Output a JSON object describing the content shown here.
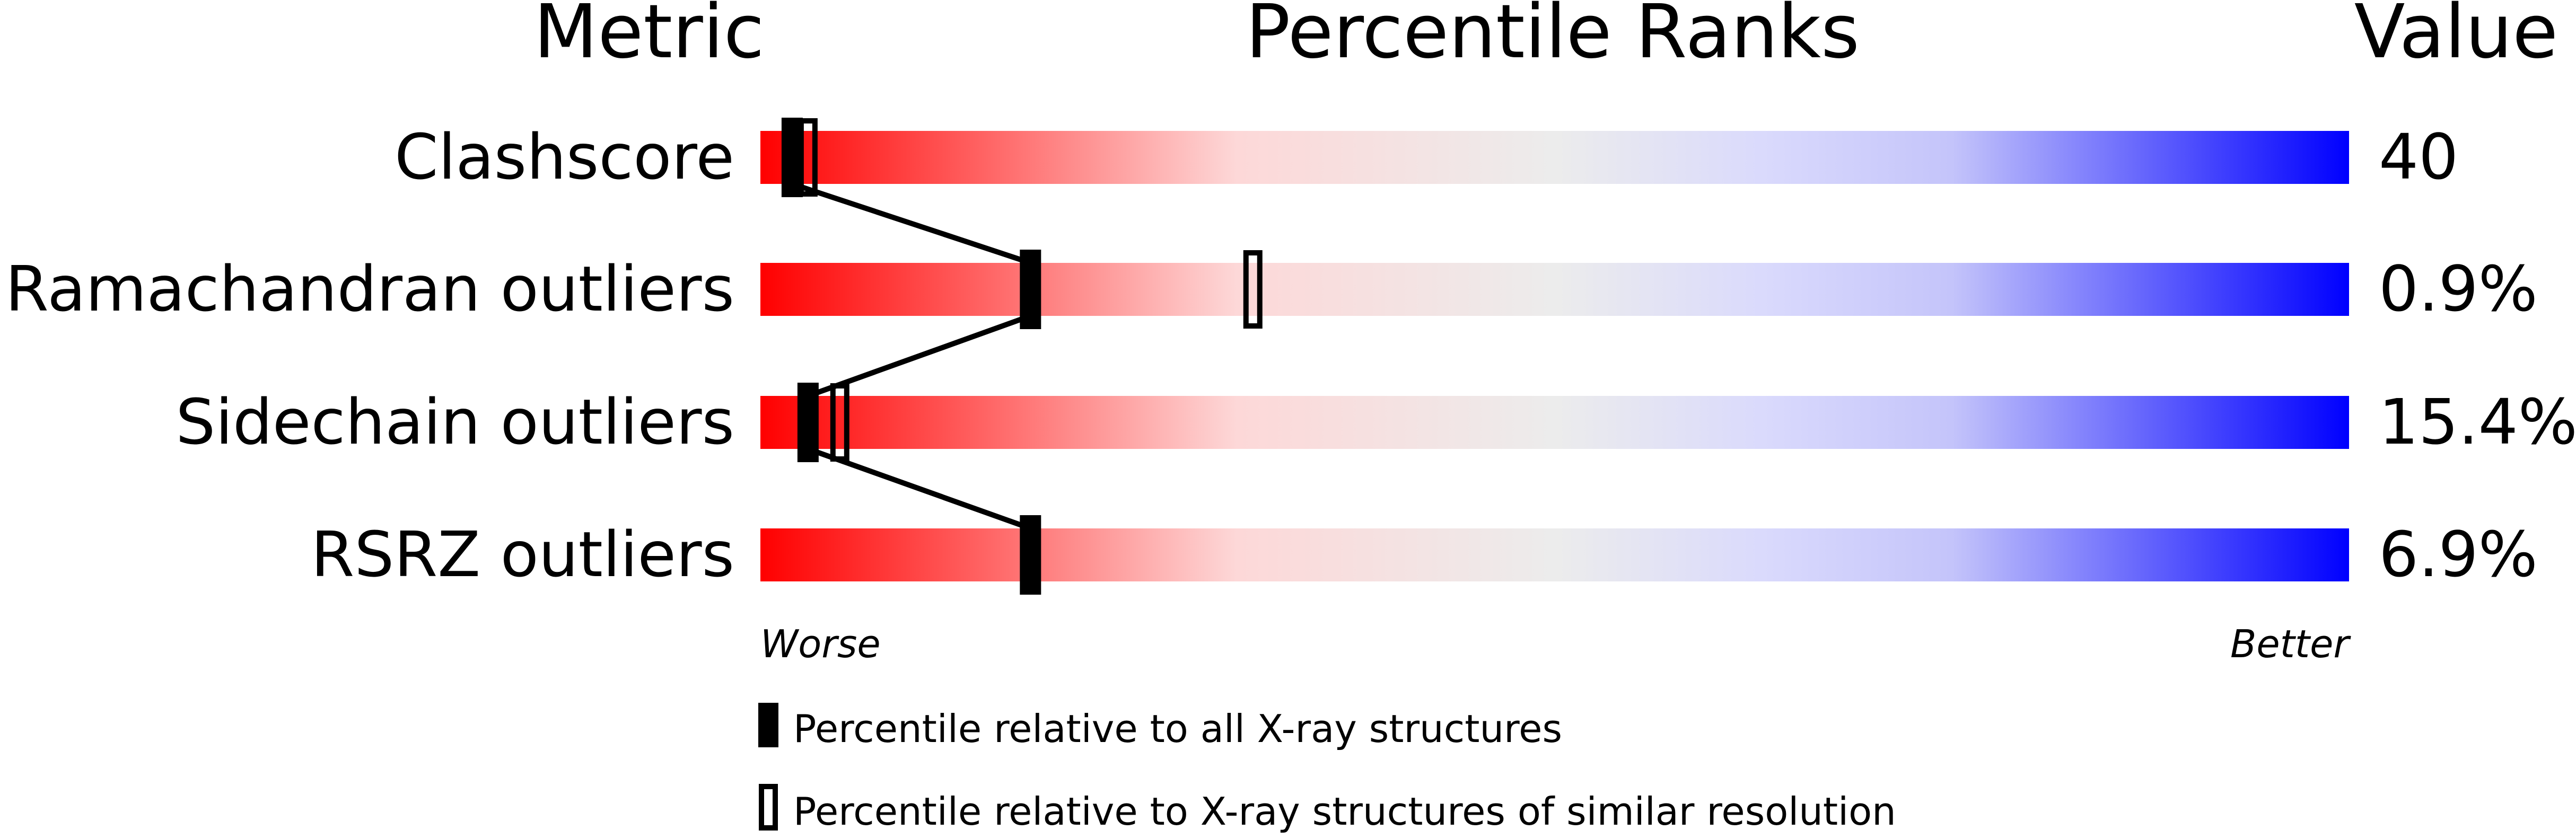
{
  "chart_data": {
    "type": "percentile-slider",
    "headers": {
      "metric": "Metric",
      "ranks": "Percentile Ranks",
      "value": "Value"
    },
    "xlim": [
      0,
      100
    ],
    "metrics": [
      {
        "name": "Clashscore",
        "value": "40",
        "percentile_all": 2,
        "percentile_similar": 3
      },
      {
        "name": "Ramachandran outliers",
        "value": "0.9%",
        "percentile_all": 17,
        "percentile_similar": 31
      },
      {
        "name": "Sidechain outliers",
        "value": "15.4%",
        "percentile_all": 3,
        "percentile_similar": 5
      },
      {
        "name": "RSRZ outliers",
        "value": "6.9%",
        "percentile_all": 17,
        "percentile_similar": 17
      }
    ],
    "axis_labels": {
      "left": "Worse",
      "right": "Better"
    },
    "legend": {
      "all": "Percentile relative to all X-ray structures",
      "similar": "Percentile relative to X-ray structures of similar resolution"
    },
    "colors": {
      "worse": "#ff0000",
      "middle": "#eeeeee",
      "better": "#0000ff",
      "marker": "#000000"
    }
  }
}
